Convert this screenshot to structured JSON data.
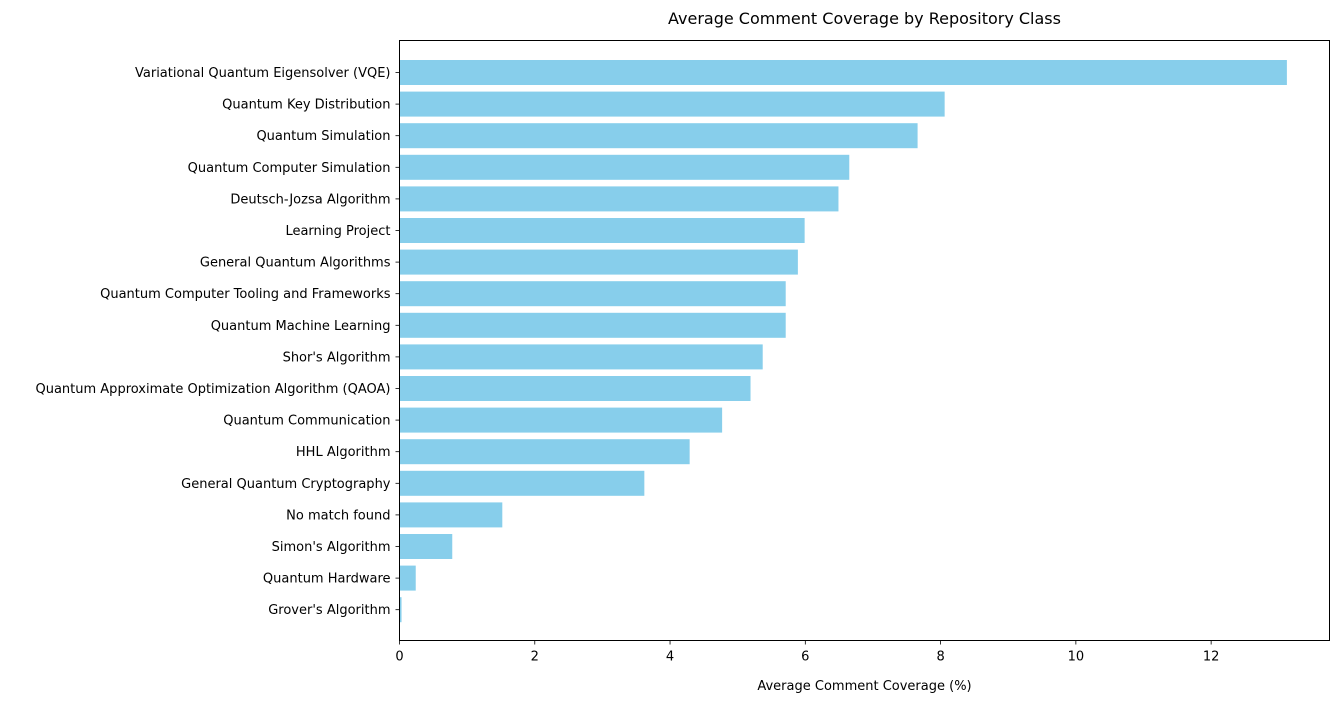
{
  "chart_data": {
    "type": "bar",
    "orientation": "horizontal",
    "title": "Average Comment Coverage by Repository Class",
    "xlabel": "Average Comment Coverage (%)",
    "ylabel": "",
    "xlim": [
      0,
      13.75
    ],
    "xticks": [
      "0",
      "2",
      "4",
      "6",
      "8",
      "10",
      "12"
    ],
    "grid": false,
    "bar_color": "#87ceeb",
    "categories": [
      "Variational Quantum Eigensolver (VQE)",
      "Quantum Key Distribution",
      "Quantum Simulation",
      "Quantum Computer Simulation",
      "Deutsch-Jozsa Algorithm",
      "Learning Project",
      "General Quantum Algorithms",
      "Quantum Computer Tooling and Frameworks",
      "Quantum Machine Learning",
      "Shor's Algorithm",
      "Quantum Approximate Optimization Algorithm (QAOA)",
      "Quantum Communication",
      "HHL Algorithm",
      "General Quantum Cryptography",
      "No match found",
      "Simon's Algorithm",
      "Quantum Hardware",
      "Grover's Algorithm"
    ],
    "values": [
      13.12,
      8.06,
      7.66,
      6.65,
      6.49,
      5.99,
      5.89,
      5.71,
      5.71,
      5.37,
      5.19,
      4.77,
      4.29,
      3.62,
      1.52,
      0.78,
      0.24,
      0.03
    ]
  }
}
